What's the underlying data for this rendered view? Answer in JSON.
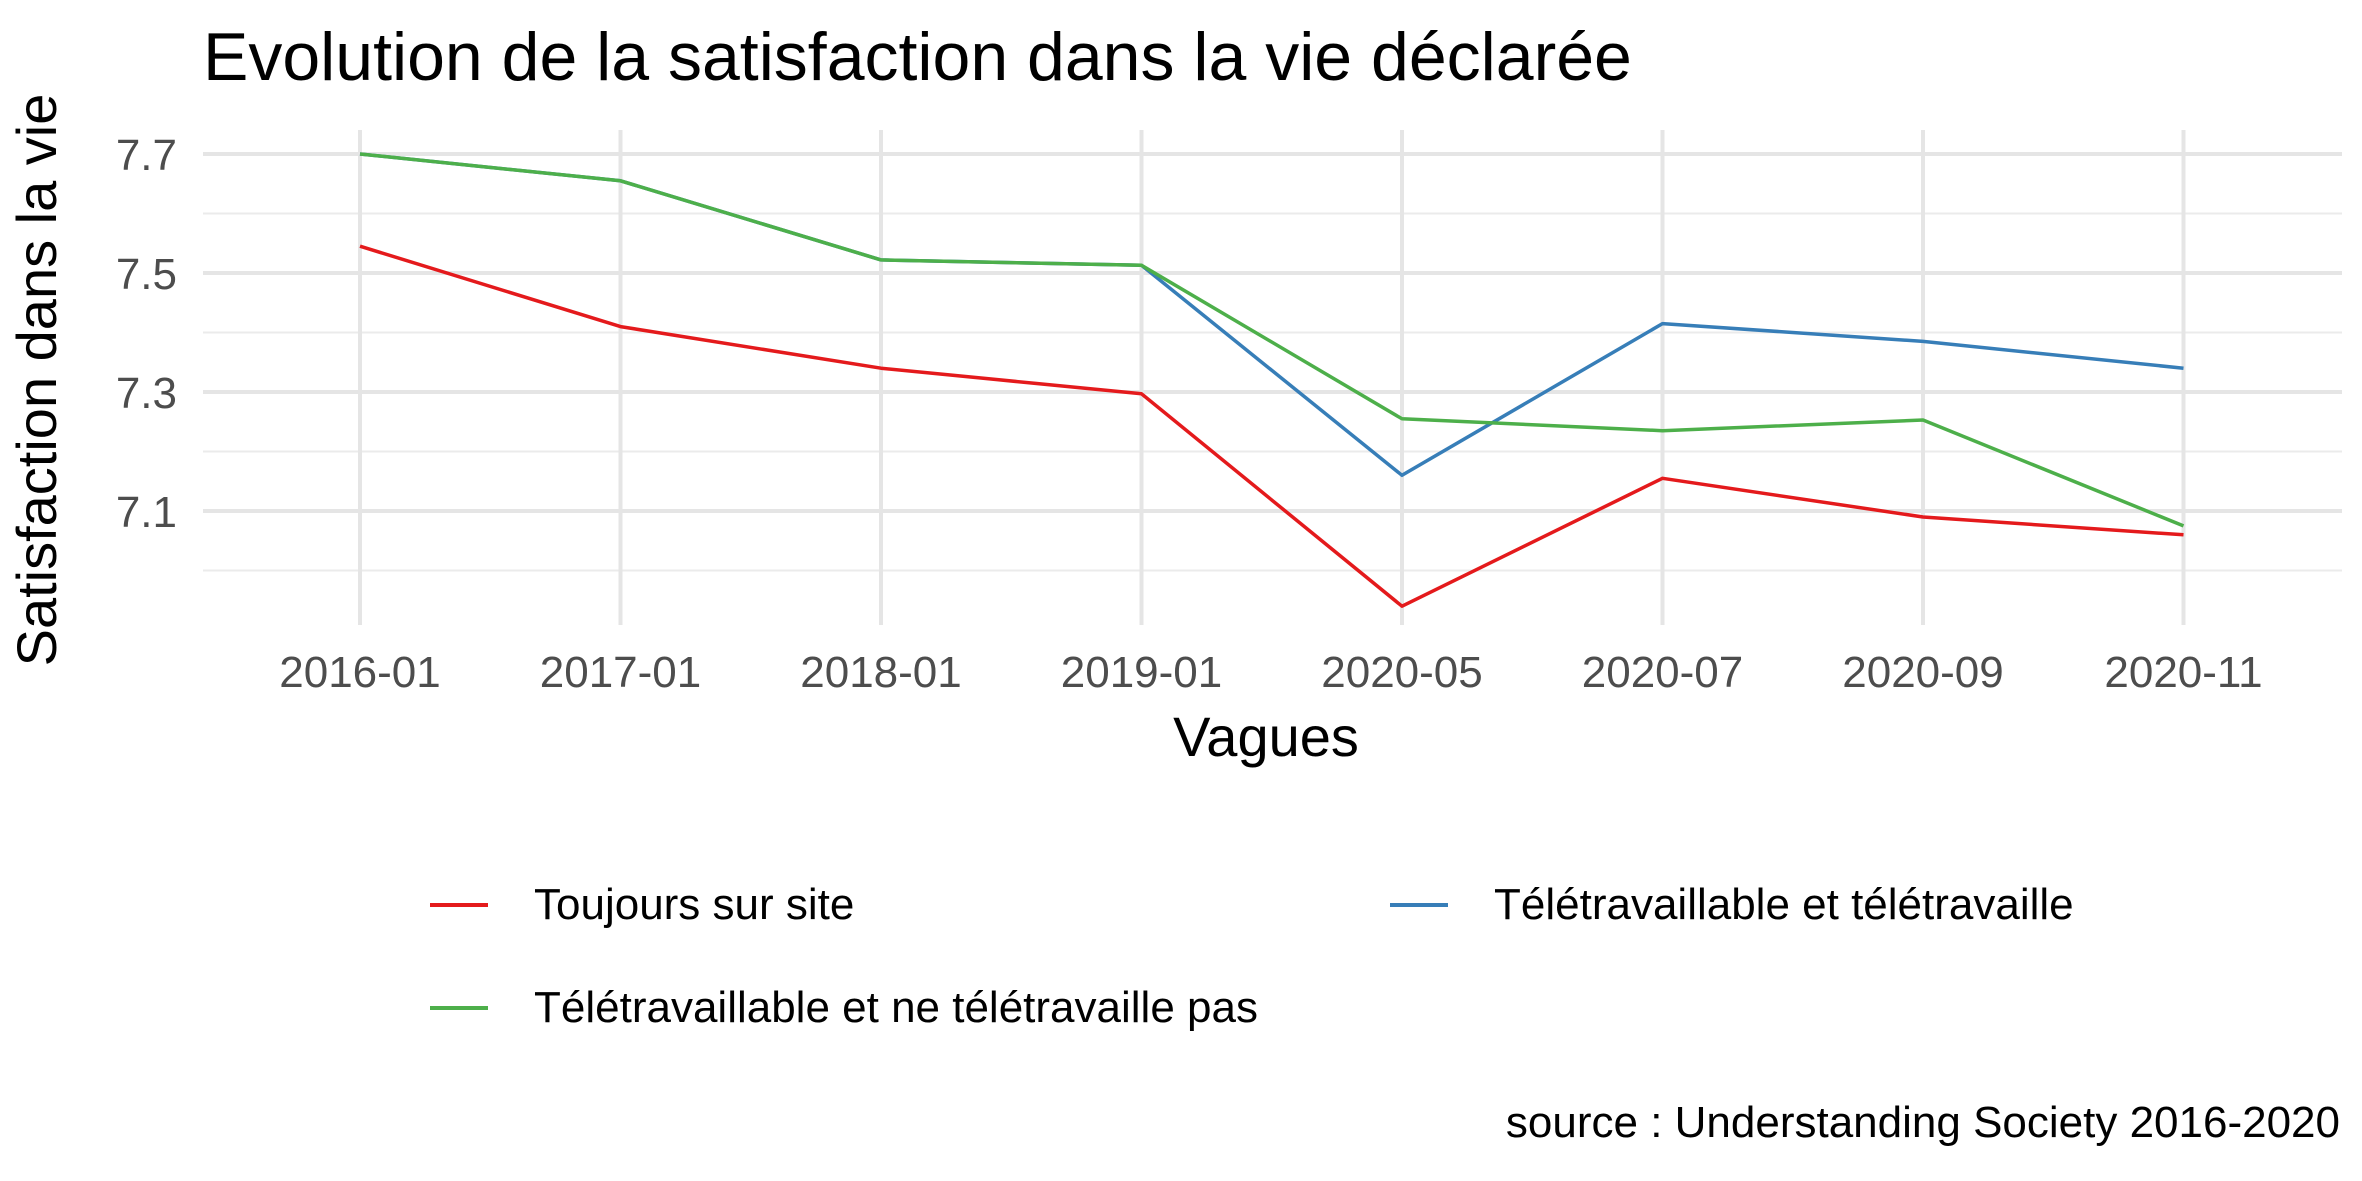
{
  "chart_data": {
    "type": "line",
    "title": "Evolution de la satisfaction dans la vie déclarée",
    "xlabel": "Vagues",
    "ylabel": "Satisfaction dans la vie",
    "categories": [
      "2016-01",
      "2017-01",
      "2018-01",
      "2019-01",
      "2020-05",
      "2020-07",
      "2020-09",
      "2020-11"
    ],
    "y_ticks": [
      "7.1",
      "7.3",
      "7.5",
      "7.7"
    ],
    "ylim": [
      6.96,
      7.74
    ],
    "grid": true,
    "legend_position": "bottom",
    "series": [
      {
        "name": "Toujours sur site",
        "color": "#e41a1c",
        "values": [
          7.545,
          7.41,
          7.34,
          7.297,
          6.94,
          7.155,
          7.09,
          7.06
        ]
      },
      {
        "name": "Télétravaillable et télétravaille",
        "color": "#377eb8",
        "values": [
          7.7,
          7.655,
          7.522,
          7.513,
          7.16,
          7.415,
          7.385,
          7.34
        ]
      },
      {
        "name": "Télétravaillable et ne télétravaille pas",
        "color": "#4daf4a",
        "values": [
          7.7,
          7.655,
          7.522,
          7.513,
          7.255,
          7.235,
          7.253,
          7.075
        ]
      }
    ],
    "source": "source : Understanding Society 2016-2020"
  }
}
